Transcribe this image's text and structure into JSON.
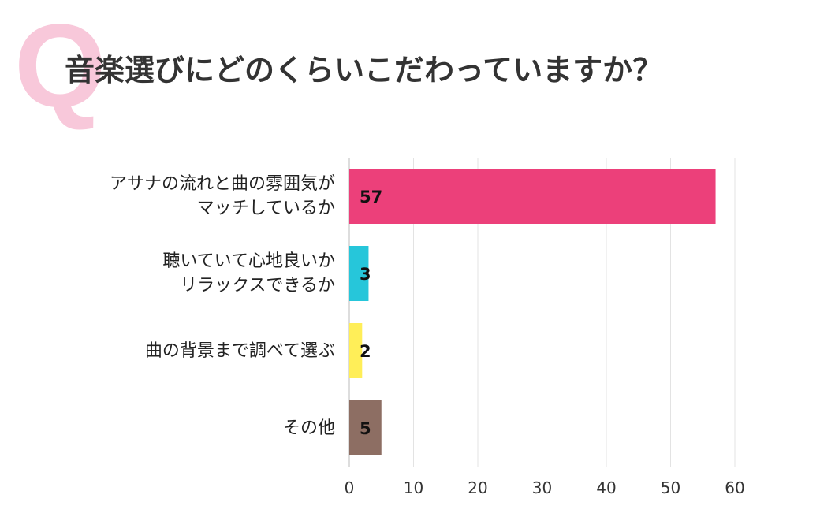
{
  "chart_data": {
    "type": "bar",
    "orientation": "horizontal",
    "badge": "Q",
    "title": "音楽選びにどのくらいこだわっていますか？",
    "categories": [
      "アサナの流れと曲の雰囲気が\nマッチしているか",
      "聴いていて心地良いか\nリラックスできるか",
      "曲の背景まで調べて選ぶ",
      "その他"
    ],
    "values": [
      57,
      3,
      2,
      5
    ],
    "colors": [
      "#ec407a",
      "#26c6da",
      "#ffee58",
      "#8d6e63"
    ],
    "xlim": [
      0,
      60
    ],
    "xticks": [
      0,
      10,
      20,
      30,
      40,
      50,
      60
    ],
    "grid": true
  }
}
